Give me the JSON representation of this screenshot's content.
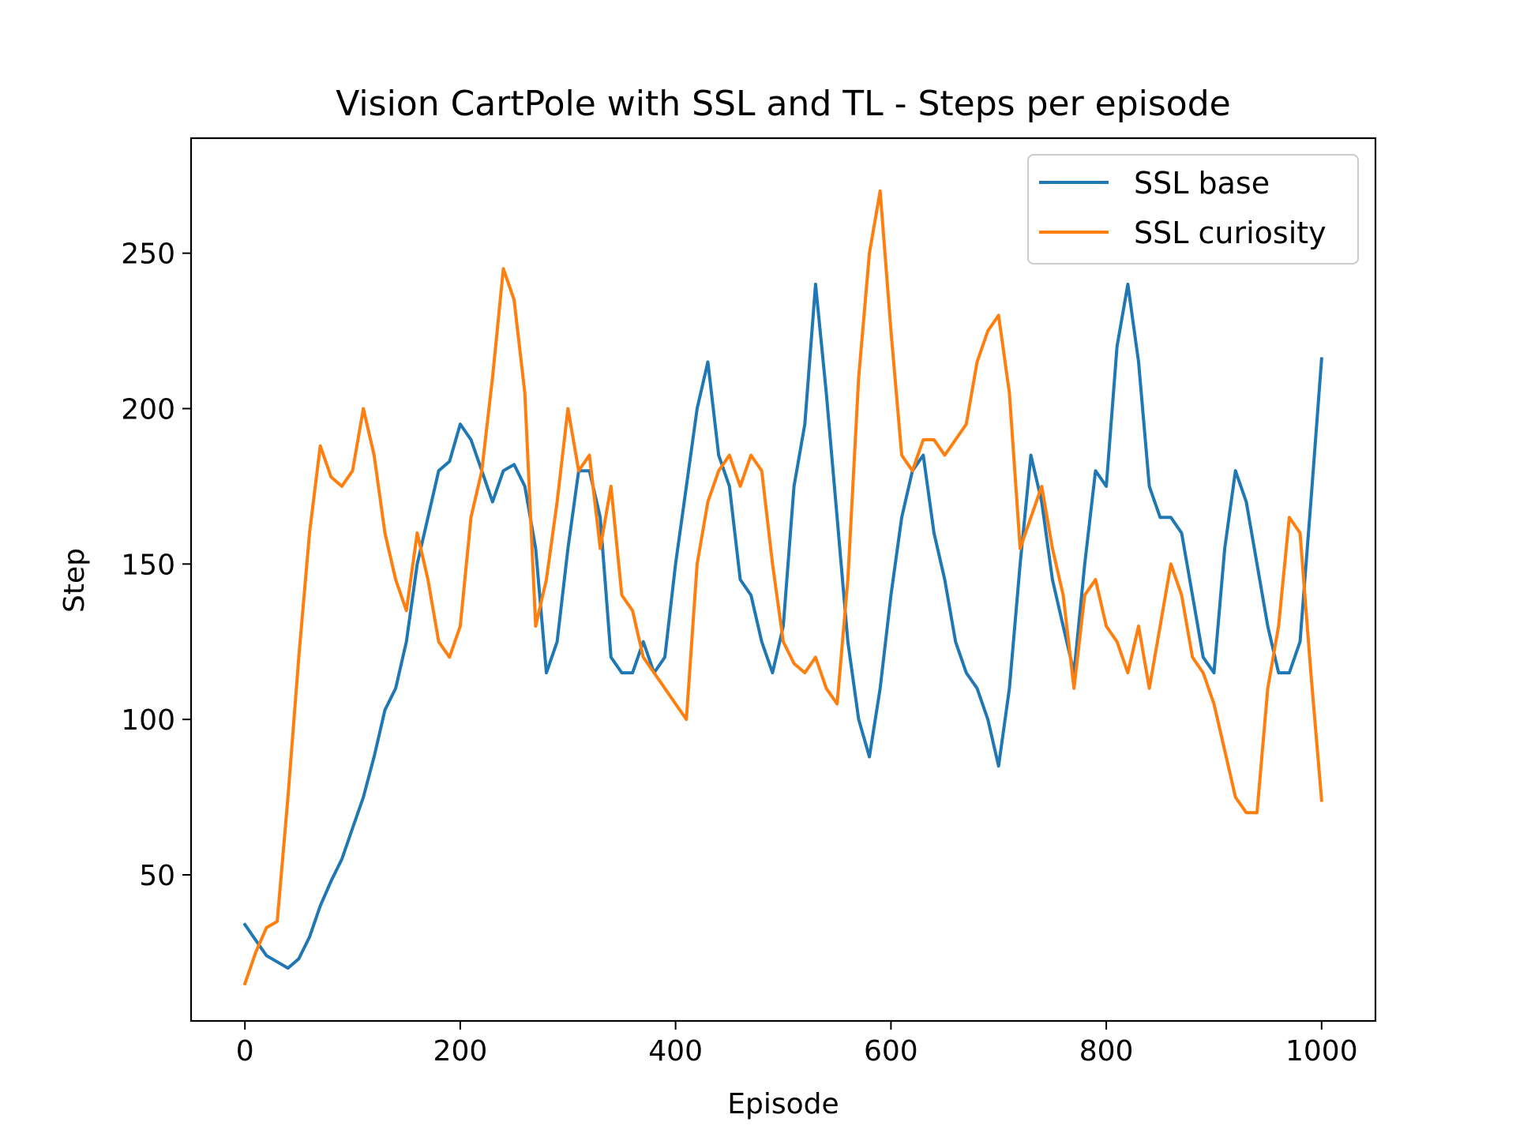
{
  "chart_data": {
    "type": "line",
    "title": "Vision CartPole with SSL and TL - Steps per episode",
    "xlabel": "Episode",
    "ylabel": "Step",
    "xlim": [
      -50,
      1050
    ],
    "ylim": [
      3,
      287
    ],
    "xticks": [
      0,
      200,
      400,
      600,
      800,
      1000
    ],
    "yticks": [
      50,
      100,
      150,
      200,
      250
    ],
    "grid": false,
    "legend_position": "top-right",
    "series": [
      {
        "name": "SSL base",
        "color": "#1f77b4",
        "x": [
          0,
          10,
          20,
          30,
          40,
          50,
          60,
          70,
          80,
          90,
          100,
          110,
          120,
          130,
          140,
          150,
          160,
          170,
          180,
          190,
          200,
          210,
          220,
          230,
          240,
          250,
          260,
          270,
          280,
          290,
          300,
          310,
          320,
          330,
          340,
          350,
          360,
          370,
          380,
          390,
          400,
          410,
          420,
          430,
          440,
          450,
          460,
          470,
          480,
          490,
          500,
          510,
          520,
          530,
          540,
          550,
          560,
          570,
          580,
          590,
          600,
          610,
          620,
          630,
          640,
          650,
          660,
          670,
          680,
          690,
          700,
          710,
          720,
          730,
          740,
          750,
          760,
          770,
          780,
          790,
          800,
          810,
          820,
          830,
          840,
          850,
          860,
          870,
          880,
          890,
          900,
          910,
          920,
          930,
          940,
          950,
          960,
          970,
          980,
          990,
          1000
        ],
        "y": [
          34,
          29,
          24,
          22,
          20,
          23,
          30,
          40,
          48,
          55,
          65,
          75,
          88,
          103,
          110,
          125,
          150,
          165,
          180,
          183,
          195,
          190,
          180,
          170,
          180,
          182,
          175,
          155,
          115,
          125,
          155,
          180,
          180,
          165,
          120,
          115,
          115,
          125,
          115,
          120,
          150,
          175,
          200,
          215,
          185,
          175,
          145,
          140,
          125,
          115,
          130,
          175,
          195,
          240,
          205,
          165,
          125,
          100,
          88,
          110,
          140,
          165,
          180,
          185,
          160,
          145,
          125,
          115,
          110,
          100,
          85,
          110,
          150,
          185,
          170,
          145,
          130,
          115,
          150,
          180,
          175,
          220,
          240,
          215,
          175,
          165,
          165,
          160,
          140,
          120,
          115,
          155,
          180,
          170,
          150,
          130,
          115,
          115,
          125,
          170,
          216
        ]
      },
      {
        "name": "SSL curiosity",
        "color": "#ff7f0e",
        "x": [
          0,
          10,
          20,
          30,
          40,
          50,
          60,
          70,
          80,
          90,
          100,
          110,
          120,
          130,
          140,
          150,
          160,
          170,
          180,
          190,
          200,
          210,
          220,
          230,
          240,
          250,
          260,
          270,
          280,
          290,
          300,
          310,
          320,
          330,
          340,
          350,
          360,
          370,
          380,
          390,
          400,
          410,
          420,
          430,
          440,
          450,
          460,
          470,
          480,
          490,
          500,
          510,
          520,
          530,
          540,
          550,
          560,
          570,
          580,
          590,
          600,
          610,
          620,
          630,
          640,
          650,
          660,
          670,
          680,
          690,
          700,
          710,
          720,
          730,
          740,
          750,
          760,
          770,
          780,
          790,
          800,
          810,
          820,
          830,
          840,
          850,
          860,
          870,
          880,
          890,
          900,
          910,
          920,
          930,
          940,
          950,
          960,
          970,
          980,
          990,
          1000
        ],
        "y": [
          15,
          25,
          33,
          35,
          75,
          120,
          160,
          188,
          178,
          175,
          180,
          200,
          185,
          160,
          145,
          135,
          160,
          145,
          125,
          120,
          130,
          165,
          180,
          210,
          245,
          235,
          205,
          130,
          145,
          170,
          200,
          180,
          185,
          155,
          175,
          140,
          135,
          120,
          115,
          110,
          105,
          100,
          150,
          170,
          180,
          185,
          175,
          185,
          180,
          150,
          125,
          118,
          115,
          120,
          110,
          105,
          145,
          210,
          250,
          270,
          225,
          185,
          180,
          190,
          190,
          185,
          190,
          195,
          215,
          225,
          230,
          205,
          155,
          165,
          175,
          155,
          140,
          110,
          140,
          145,
          130,
          125,
          115,
          130,
          110,
          130,
          150,
          140,
          120,
          115,
          105,
          90,
          75,
          70,
          70,
          110,
          130,
          165,
          160,
          115,
          74
        ]
      }
    ]
  }
}
